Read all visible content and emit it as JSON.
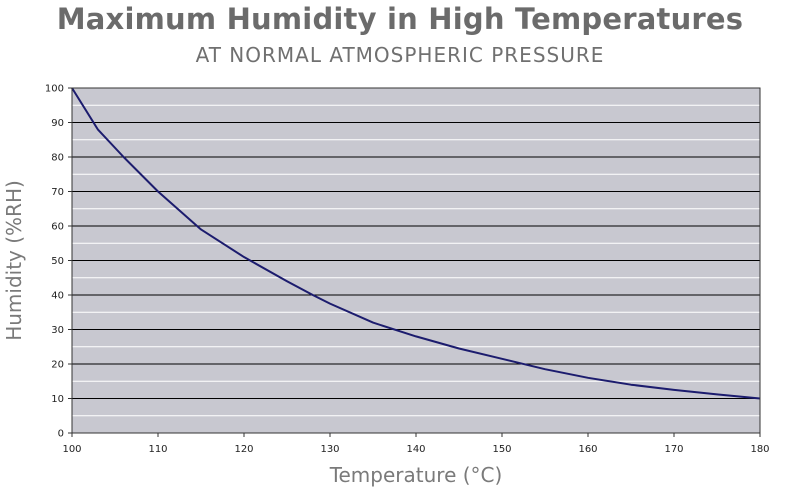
{
  "chart_data": {
    "type": "line",
    "title": "Maximum Humidity in High Temperatures",
    "subtitle": "AT NORMAL ATMOSPHERIC PRESSURE",
    "xlabel": "Temperature (°C)",
    "ylabel": "Humidity (%RH)",
    "xlim": [
      100,
      180
    ],
    "ylim": [
      0,
      100
    ],
    "x_ticks": [
      100,
      110,
      120,
      130,
      140,
      150,
      160,
      170,
      180
    ],
    "y_ticks": [
      0,
      10,
      20,
      30,
      40,
      50,
      60,
      70,
      80,
      90,
      100
    ],
    "grid": true,
    "series": [
      {
        "color": "#1c1c6e",
        "x": [
          100,
          103,
          106,
          110,
          115,
          120,
          125,
          128,
          130,
          135,
          140,
          145,
          150,
          155,
          160,
          165,
          170,
          175,
          180
        ],
        "values": [
          100,
          88,
          80,
          70,
          59,
          51,
          44,
          40,
          37.5,
          32,
          28,
          24.5,
          21.5,
          18.5,
          16,
          14,
          12.5,
          11.2,
          10
        ]
      }
    ],
    "colors": {
      "plot_background": "#c8c8d0",
      "major_grid": "#000000",
      "minor_grid": "#ffffff",
      "text": "#222222",
      "title": "#6b6b6b"
    }
  }
}
